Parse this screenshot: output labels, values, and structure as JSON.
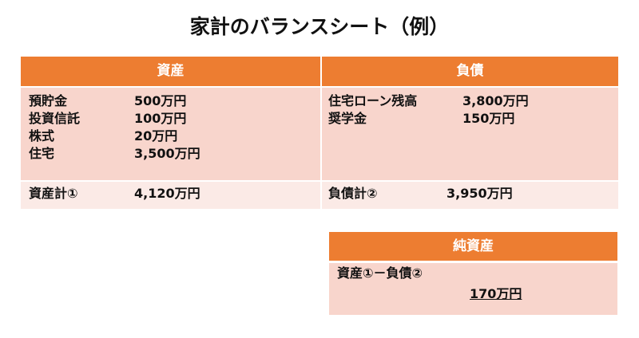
{
  "title": "家計のバランスシート（例）",
  "assets": {
    "header": "資産",
    "items": [
      {
        "label": "預貯金",
        "value": "500万円"
      },
      {
        "label": "投資信託",
        "value": "100万円"
      },
      {
        "label": "株式",
        "value": "20万円"
      },
      {
        "label": "住宅",
        "value": "3,500万円"
      }
    ],
    "total_label": "資産計①",
    "total_value": "4,120万円"
  },
  "liabilities": {
    "header": "負債",
    "items": [
      {
        "label": "住宅ローン残高",
        "value": "3,800万円"
      },
      {
        "label": "奨学金",
        "value": "150万円"
      }
    ],
    "total_label": "負債計②",
    "total_value": "3,950万円"
  },
  "net_assets": {
    "header": "純資産",
    "formula": "資産①－負債②",
    "value": "170万円"
  },
  "colors": {
    "header": "#ED7D31",
    "body": "#F8D5CC",
    "total": "#FBEAE6"
  }
}
